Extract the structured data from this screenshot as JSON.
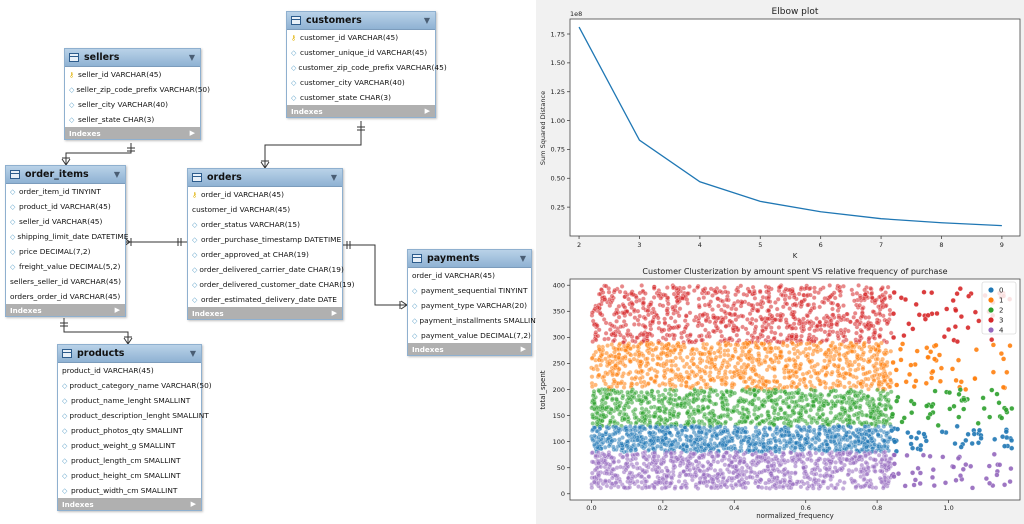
{
  "er": {
    "sellers": {
      "name": "sellers",
      "rows": [
        {
          "icon": "key",
          "text": "seller_id VARCHAR(45)"
        },
        {
          "icon": "dia",
          "text": "seller_zip_code_prefix VARCHAR(50)"
        },
        {
          "icon": "dia",
          "text": "seller_city VARCHAR(40)"
        },
        {
          "icon": "dia",
          "text": "seller_state CHAR(3)"
        }
      ],
      "indexes": "Indexes"
    },
    "customers": {
      "name": "customers",
      "rows": [
        {
          "icon": "key",
          "text": "customer_id VARCHAR(45)"
        },
        {
          "icon": "dia",
          "text": "customer_unique_id VARCHAR(45)"
        },
        {
          "icon": "dia",
          "text": "customer_zip_code_prefix VARCHAR(45)"
        },
        {
          "icon": "dia",
          "text": "customer_city VARCHAR(40)"
        },
        {
          "icon": "dia",
          "text": "customer_state CHAR(3)"
        }
      ],
      "indexes": "Indexes"
    },
    "order_items": {
      "name": "order_items",
      "rows": [
        {
          "icon": "dia",
          "text": "order_item_id TINYINT"
        },
        {
          "icon": "dia",
          "text": "product_id VARCHAR(45)"
        },
        {
          "icon": "dia",
          "text": "seller_id VARCHAR(45)"
        },
        {
          "icon": "dia",
          "text": "shipping_limit_date DATETIME"
        },
        {
          "icon": "dia",
          "text": "price DECIMAL(7,2)"
        },
        {
          "icon": "dia",
          "text": "freight_value DECIMAL(5,2)"
        },
        {
          "icon": "none",
          "text": "sellers_seller_id VARCHAR(45)"
        },
        {
          "icon": "none",
          "text": "orders_order_id VARCHAR(45)"
        }
      ],
      "indexes": "Indexes"
    },
    "orders": {
      "name": "orders",
      "rows": [
        {
          "icon": "key",
          "text": "order_id VARCHAR(45)"
        },
        {
          "icon": "none",
          "text": "customer_id VARCHAR(45)"
        },
        {
          "icon": "dia",
          "text": "order_status VARCHAR(15)"
        },
        {
          "icon": "dia",
          "text": "order_purchase_timestamp DATETIME"
        },
        {
          "icon": "dia",
          "text": "order_approved_at CHAR(19)"
        },
        {
          "icon": "dia",
          "text": "order_delivered_carrier_date CHAR(19)"
        },
        {
          "icon": "dia",
          "text": "order_delivered_customer_date CHAR(19)"
        },
        {
          "icon": "dia",
          "text": "order_estimated_delivery_date DATE"
        }
      ],
      "indexes": "Indexes"
    },
    "payments": {
      "name": "payments",
      "rows": [
        {
          "icon": "none",
          "text": "order_id VARCHAR(45)"
        },
        {
          "icon": "dia",
          "text": "payment_sequential TINYINT"
        },
        {
          "icon": "dia",
          "text": "payment_type VARCHAR(20)"
        },
        {
          "icon": "dia",
          "text": "payment_installments SMALLINT"
        },
        {
          "icon": "dia",
          "text": "payment_value DECIMAL(7,2)"
        }
      ],
      "indexes": "Indexes"
    },
    "products": {
      "name": "products",
      "rows": [
        {
          "icon": "none",
          "text": "product_id VARCHAR(45)"
        },
        {
          "icon": "dia",
          "text": "product_category_name VARCHAR(50)"
        },
        {
          "icon": "dia",
          "text": "product_name_lenght SMALLINT"
        },
        {
          "icon": "dia",
          "text": "product_description_lenght SMALLINT"
        },
        {
          "icon": "dia",
          "text": "product_photos_qty SMALLINT"
        },
        {
          "icon": "dia",
          "text": "product_weight_g SMALLINT"
        },
        {
          "icon": "dia",
          "text": "product_length_cm SMALLINT"
        },
        {
          "icon": "dia",
          "text": "product_height_cm SMALLINT"
        },
        {
          "icon": "dia",
          "text": "product_width_cm SMALLINT"
        }
      ],
      "indexes": "Indexes"
    }
  },
  "colors": {
    "header": "#9dbcd9",
    "index_bar": "#b0b0b0",
    "line": "#1f77b4",
    "c0": "#1f77b4",
    "c1": "#ff7f0e",
    "c2": "#2ca02c",
    "c3": "#d62728",
    "c4": "#9467bd"
  },
  "chart_data": [
    {
      "type": "line",
      "title": "Elbow plot",
      "xlabel": "K",
      "ylabel": "Sum Squared Distance",
      "offset_label": "1e8",
      "x": [
        2,
        3,
        4,
        5,
        6,
        7,
        8,
        9
      ],
      "y": [
        1.81,
        0.83,
        0.47,
        0.3,
        0.21,
        0.15,
        0.115,
        0.09
      ],
      "xlim": [
        1.85,
        9.3
      ],
      "ylim": [
        0,
        1.88
      ],
      "xticks": [
        "2",
        "3",
        "4",
        "5",
        "6",
        "7",
        "8",
        "9"
      ],
      "yticks": [
        "0.25",
        "0.50",
        "0.75",
        "1.00",
        "1.25",
        "1.50",
        "1.75"
      ],
      "grid": false
    },
    {
      "type": "scatter",
      "title": "Customer Clusterization by amount spent VS relative frequency of purchase",
      "xlabel": "normalized_frequency",
      "ylabel": "total_spent",
      "xlim": [
        -0.06,
        1.2
      ],
      "ylim": [
        -12,
        412
      ],
      "xticks": [
        "0.0",
        "0.2",
        "0.4",
        "0.6",
        "0.8",
        "1.0"
      ],
      "yticks": [
        "0",
        "50",
        "100",
        "150",
        "200",
        "250",
        "300",
        "350",
        "400"
      ],
      "legend_position": "top-right",
      "series": [
        {
          "name": "0",
          "y_range": [
            80,
            130
          ],
          "x_dense_max": 0.84,
          "x_sparse_max": 1.18
        },
        {
          "name": "1",
          "y_range": [
            200,
            290
          ],
          "x_dense_max": 0.84,
          "x_sparse_max": 1.18
        },
        {
          "name": "2",
          "y_range": [
            130,
            200
          ],
          "x_dense_max": 0.84,
          "x_sparse_max": 1.18
        },
        {
          "name": "3",
          "y_range": [
            290,
            400
          ],
          "x_dense_max": 0.84,
          "x_sparse_max": 1.18
        },
        {
          "name": "4",
          "y_range": [
            10,
            80
          ],
          "x_dense_max": 0.84,
          "x_sparse_max": 1.18
        }
      ]
    }
  ]
}
